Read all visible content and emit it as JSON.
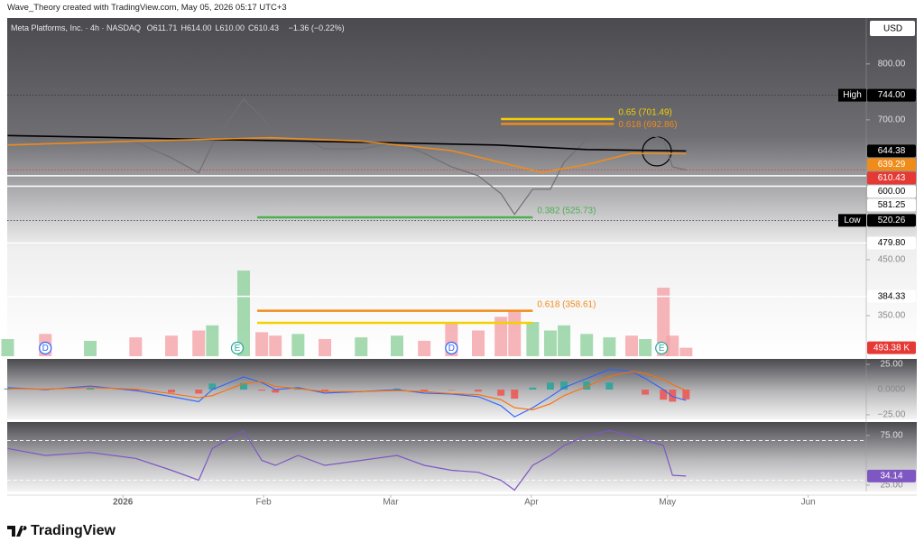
{
  "header": {
    "credit": "Wave_Theory created with TradingView.com, May 05, 2026 05:17 UTC+3",
    "brand": "TradingView"
  },
  "chart_data": [
    {
      "type": "price",
      "title": "Meta Platforms, Inc. · 4h · NASDAQ",
      "ohlc": [
        {
          "key": "O",
          "value": "611.71"
        },
        {
          "key": "H",
          "value": "614.00"
        },
        {
          "key": "L",
          "value": "610.00"
        },
        {
          "key": "C",
          "value": "610.43"
        }
      ],
      "change": "−1.36 (−0.22%)",
      "currency": "USD",
      "xlim": [
        -25.5,
        163.8
      ],
      "xticks": [
        {
          "value": 0,
          "label": "2026"
        },
        {
          "value": 31,
          "label": "Feb"
        },
        {
          "value": 59,
          "label": "Mar"
        },
        {
          "value": 90,
          "label": "Apr"
        },
        {
          "value": 120,
          "label": "May"
        },
        {
          "value": 151,
          "label": "Jun"
        }
      ],
      "ylim": [
        277.4,
        882
      ],
      "yticks": [
        {
          "value": 800,
          "label": "800.00"
        },
        {
          "value": 700,
          "label": "700.00"
        },
        {
          "value": 450,
          "label": "450.00"
        },
        {
          "value": 350,
          "label": "350.00"
        }
      ],
      "series": [
        {
          "color": "#6f6f74",
          "x": [
            -25.4,
            -17.1,
            -7.2,
            2.8,
            10.7,
            16.7,
            19.7,
            26.6,
            30.6,
            33.6,
            38.6,
            44.5,
            52.5,
            60.4,
            66.4,
            72.4,
            78.3,
            83.3,
            86.3,
            90.3,
            94.2,
            97.2,
            102.2,
            107.2,
            112.1,
            115.1,
            119.1,
            121.1,
            124.1
          ],
          "values": [
            672,
            656,
            665,
            660,
            632,
            605,
            656,
            737,
            705,
            672,
            672,
            648,
            648,
            660,
            640,
            616,
            600,
            568,
            531,
            576,
            576,
            624,
            665,
            689,
            665,
            676,
            665,
            616,
            610.43
          ]
        },
        {
          "color": "#000000",
          "x": [
            -25.4,
            12.7,
            52.5,
            82.3,
            102.2,
            124.1
          ],
          "values": [
            672,
            666,
            660,
            655,
            647,
            644.38
          ]
        },
        {
          "color": "#f08c1a",
          "x": [
            -25.4,
            2.8,
            32.6,
            52.5,
            72.4,
            92.3,
            102.2,
            112.1,
            124.1
          ],
          "values": [
            655,
            662,
            668,
            662,
            645,
            606,
            620,
            640,
            639.29
          ]
        }
      ],
      "volume": {
        "lim": [
          0,
          5000
        ],
        "up_color": "#8fd19e",
        "down_color": "#f4a3a8",
        "values": [
          1000,
          1300,
          900,
          1100,
          1200,
          1500,
          1800,
          5000,
          1400,
          1200,
          1300,
          1000,
          1100,
          1200,
          900,
          2000,
          1500,
          2300,
          2600,
          2000,
          1500,
          1800,
          1300,
          1100,
          1200,
          1000,
          4000,
          1200,
          493.38
        ],
        "last_label": "493.38 K",
        "label_color": "#e53935"
      },
      "price_labels": [
        {
          "caption": "High",
          "value": 744,
          "label": "744.00",
          "bg": "#000000",
          "fg": "#ffffff",
          "line": "dotted",
          "line_color": "#333333"
        },
        {
          "value": 644.38,
          "label": "644.38",
          "bg": "#000000",
          "fg": "#ffffff"
        },
        {
          "value": 639.29,
          "label": "639.29",
          "bg": "#f08c1a",
          "fg": "#ffffff"
        },
        {
          "value": 610.43,
          "label": "610.43",
          "bg": "#e53935",
          "fg": "#ffffff",
          "line": "dotted",
          "line_color": "#e53935"
        },
        {
          "value": 600,
          "label": "600.00",
          "bg": "#ffffff",
          "fg": "#000000",
          "line": "solid",
          "line_color": "#ffffff"
        },
        {
          "value": 581.25,
          "label": "581.25",
          "bg": "#ffffff",
          "fg": "#000000",
          "line": "solid",
          "line_color": "#ffffff"
        },
        {
          "caption": "Low",
          "value": 520.26,
          "label": "520.26",
          "bg": "#000000",
          "fg": "#ffffff",
          "line": "dotted",
          "line_color": "#333333"
        },
        {
          "value": 479.8,
          "label": "479.80",
          "bg": "#ffffff",
          "fg": "#000000",
          "line": "solid",
          "line_color": "#ffffff"
        },
        {
          "value": 384.33,
          "label": "384.33",
          "bg": "#ffffff",
          "fg": "#000000",
          "line": "solid",
          "line_color": "#ffffff"
        }
      ],
      "levels": [
        {
          "label": "0.65 (701.49)",
          "value": 701.49,
          "color": "#f5d000",
          "from": 83.3,
          "to": 108.2
        },
        {
          "label": "0.618 (692.86)",
          "value": 692.86,
          "color": "#f08c1a",
          "from": 83.3,
          "to": 108.2
        },
        {
          "label": "0.382 (525.73)",
          "value": 525.73,
          "color": "#4caf50",
          "from": 29.6,
          "to": 90.3
        },
        {
          "label": "0.618 (358.61)",
          "value": 358.61,
          "color": "#f08c1a",
          "from": 29.6,
          "to": 90.3
        },
        {
          "value": 337,
          "color": "#f5d000",
          "from": 29.6,
          "to": 90.3
        }
      ],
      "events": [
        {
          "label": "D",
          "x": -17.1,
          "color": "#2962ff"
        },
        {
          "label": "E",
          "x": 25.2,
          "color": "#26a69a"
        },
        {
          "label": "D",
          "x": 72.4,
          "color": "#2962ff"
        },
        {
          "label": "E",
          "x": 118.7,
          "color": "#26a69a"
        }
      ]
    },
    {
      "type": "macd",
      "x": [
        -25.4,
        -17.1,
        -7.2,
        2.8,
        10.7,
        16.7,
        19.7,
        26.6,
        30.6,
        33.6,
        38.6,
        44.5,
        52.5,
        60.4,
        66.4,
        72.4,
        78.3,
        83.3,
        86.3,
        90.3,
        94.2,
        97.2,
        102.2,
        107.2,
        112.1,
        115.1,
        119.1,
        121.1,
        124.1
      ],
      "ylim": [
        -29.5,
        30.4
      ],
      "yticks": [
        {
          "value": 25,
          "label": "25.00"
        },
        {
          "value": 0,
          "label": "0.0000"
        },
        {
          "value": -25,
          "label": "−25.00"
        }
      ],
      "series": [
        {
          "color": "#2962ff",
          "values": [
            2,
            0,
            3.5,
            -1,
            -7,
            -12,
            0,
            12.5,
            7,
            0,
            2,
            -3.5,
            -2,
            0,
            -3.5,
            -4.5,
            -7,
            -16,
            -27,
            -18,
            -7,
            2,
            11,
            20,
            18,
            11,
            0,
            -7,
            -10.7
          ]
        },
        {
          "color": "#ff6d00",
          "values": [
            1,
            0.5,
            2,
            0.5,
            -4,
            -8,
            -6,
            6,
            8,
            3,
            1,
            -2,
            -2,
            -1,
            -2,
            -4,
            -5,
            -10,
            -18,
            -20,
            -14,
            -6,
            3,
            13,
            18,
            16,
            10,
            5,
            -1
          ]
        }
      ],
      "histogram": {
        "up_color": "#26a69a",
        "down_color": "#ef5350",
        "values": [
          1,
          -0.5,
          1.5,
          -1.5,
          -3,
          -4,
          6,
          6.5,
          -1,
          -3,
          1,
          -1.5,
          0,
          1,
          -1.5,
          -0.5,
          -2,
          -6,
          -9,
          2,
          7,
          8,
          8,
          7,
          0,
          -5,
          -10,
          -12,
          -9.7
        ]
      }
    },
    {
      "type": "rsi",
      "x": [
        -25.4,
        -17.1,
        -7.2,
        2.8,
        10.7,
        16.7,
        19.7,
        26.6,
        30.6,
        33.6,
        38.6,
        44.5,
        52.5,
        60.4,
        66.4,
        72.4,
        78.3,
        83.3,
        86.3,
        90.3,
        94.2,
        97.2,
        102.2,
        107.2,
        112.1,
        115.1,
        119.1,
        121.1,
        124.1
      ],
      "ylim": [
        18.6,
        88.6
      ],
      "yticks": [
        {
          "value": 75,
          "label": "75.00"
        },
        {
          "value": 25,
          "label": "25.00"
        }
      ],
      "bands": [
        70,
        30
      ],
      "series": [
        {
          "color": "#7e57c2",
          "values": [
            62,
            55,
            58,
            52,
            40,
            30,
            62,
            80,
            50,
            45,
            55,
            45,
            50,
            55,
            45,
            40,
            38,
            30,
            20,
            45,
            55,
            65,
            75,
            80,
            75,
            70,
            65,
            35,
            34.14
          ]
        }
      ]
    }
  ]
}
